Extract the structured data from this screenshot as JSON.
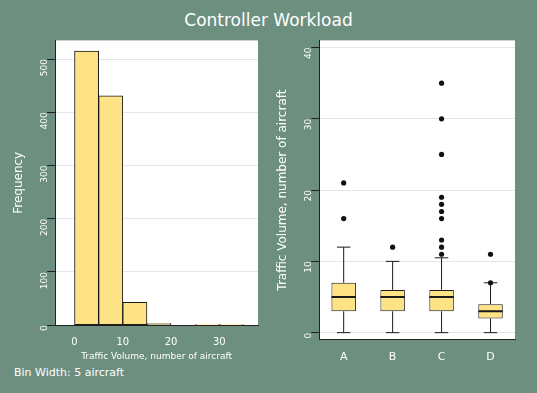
{
  "title": "Controller Workload",
  "chart_data": [
    {
      "type": "histogram",
      "bins": [
        0,
        5,
        10,
        15,
        20,
        25,
        30,
        35
      ],
      "counts": [
        515,
        431,
        43,
        3,
        0,
        1,
        1
      ],
      "color": "#fde385",
      "xlabel": "Traffic Volume, number of aircraft",
      "ylabel": "Frequency",
      "xlim": [
        -4,
        38
      ],
      "xticks": [
        0,
        10,
        20,
        30
      ],
      "ylim": [
        0,
        535
      ],
      "yticks": [
        0,
        100,
        200,
        300,
        400,
        500
      ],
      "grid": true,
      "annotation": "Bin Width: 5 aircraft"
    },
    {
      "type": "boxplot",
      "categories": [
        "A",
        "B",
        "C",
        "D"
      ],
      "boxes": [
        {
          "whisker_low": 0,
          "q1": 3,
          "median": 5,
          "q3": 7,
          "whisker_high": 12,
          "outliers": [
            16,
            21
          ]
        },
        {
          "whisker_low": 0,
          "q1": 3,
          "median": 5,
          "q3": 6,
          "whisker_high": 10,
          "outliers": [
            12
          ]
        },
        {
          "whisker_low": 0,
          "q1": 3,
          "median": 5,
          "q3": 6,
          "whisker_high": 10.5,
          "outliers": [
            11,
            12,
            13,
            16,
            17,
            18,
            19,
            25,
            30,
            35
          ]
        },
        {
          "whisker_low": 0,
          "q1": 2,
          "median": 3,
          "q3": 4,
          "whisker_high": 7,
          "outliers": [
            7,
            11
          ]
        }
      ],
      "color": "#fde385",
      "ylabel": "Traffic Volume, number of aircraft",
      "ylim": [
        -1,
        41
      ],
      "yticks": [
        0,
        10,
        20,
        30,
        40
      ],
      "grid": true
    }
  ]
}
